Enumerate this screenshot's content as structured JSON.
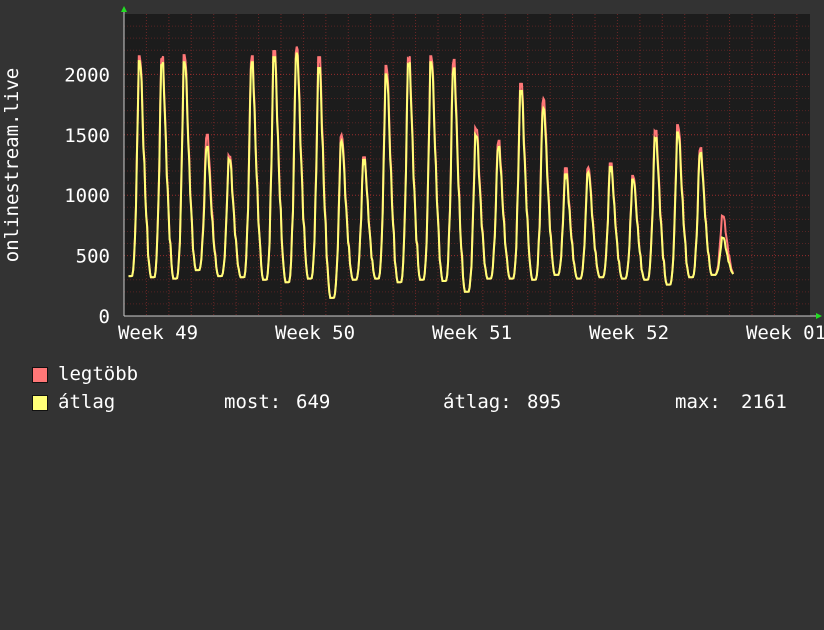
{
  "chart_data": {
    "type": "line",
    "ylabel": "onlinestream.live",
    "ylim": [
      0,
      2500
    ],
    "yticks": [
      0,
      500,
      1000,
      1500,
      2000
    ],
    "xlim_days": 35,
    "xticks": [
      {
        "label": "Week 49",
        "day": 0
      },
      {
        "label": "Week 50",
        "day": 7
      },
      {
        "label": "Week 51",
        "day": 14
      },
      {
        "label": "Week 52",
        "day": 21
      },
      {
        "label": "Week 01",
        "day": 28
      }
    ],
    "grid": true,
    "daily_peak_max": [
      2150,
      2150,
      2160,
      1500,
      1330,
      2150,
      2200,
      2230,
      2150,
      1500,
      1320,
      2070,
      2150,
      2150,
      2120,
      1560,
      1450,
      1930,
      1800,
      1230,
      1230,
      1270,
      1160,
      1540,
      1580,
      1390,
      830
    ],
    "daily_peak_avg": [
      2110,
      2100,
      2100,
      1400,
      1300,
      2100,
      2150,
      2180,
      2060,
      1450,
      1300,
      2000,
      2100,
      2100,
      2050,
      1500,
      1400,
      1870,
      1720,
      1180,
      1190,
      1240,
      1130,
      1480,
      1520,
      1350,
      650
    ],
    "daily_trough": [
      330,
      320,
      310,
      380,
      330,
      320,
      300,
      280,
      310,
      150,
      300,
      310,
      280,
      300,
      290,
      200,
      310,
      310,
      300,
      340,
      310,
      320,
      310,
      300,
      260,
      320,
      340
    ],
    "series": [
      {
        "name": "legtöbb",
        "color": "#ff7777"
      },
      {
        "name": "átlag",
        "color": "#ffff77"
      }
    ]
  },
  "legend": {
    "max_label": "legtöbb",
    "avg_label": "átlag",
    "most_label": "most:",
    "most_value": "649",
    "atlag_label": "átlag:",
    "atlag_value": "895",
    "max_stat_label": "max:",
    "max_value": "2161"
  },
  "colors": {
    "background": "#333333",
    "plot_bg": "#1c1c1c",
    "grid": "#ff3c3c",
    "axis": "#cccccc",
    "arrow": "#22dd22"
  }
}
